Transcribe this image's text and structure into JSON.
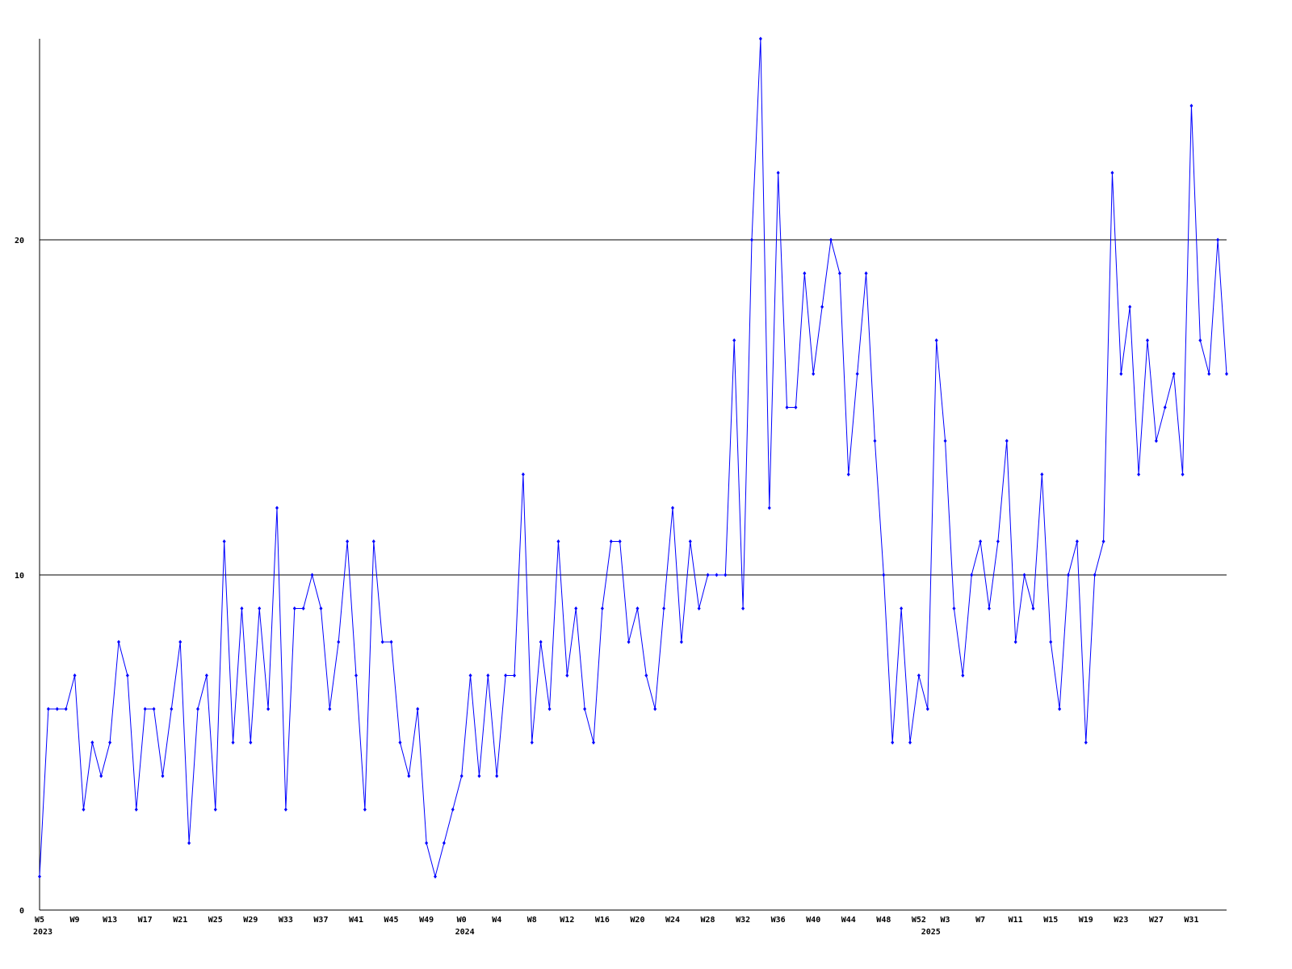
{
  "chart_data": {
    "type": "line",
    "categories": [
      "W5",
      null,
      null,
      null,
      "W9",
      null,
      null,
      null,
      "W13",
      null,
      null,
      null,
      "W17",
      null,
      null,
      null,
      "W21",
      null,
      null,
      null,
      "W25",
      null,
      null,
      null,
      "W29",
      null,
      null,
      null,
      "W33",
      null,
      null,
      null,
      "W37",
      null,
      null,
      null,
      "W41",
      null,
      null,
      null,
      "W45",
      null,
      null,
      null,
      "W49",
      null,
      null,
      null,
      "W0",
      null,
      null,
      null,
      "W4",
      null,
      null,
      null,
      "W8",
      null,
      null,
      null,
      "W12",
      null,
      null,
      null,
      "W16",
      null,
      null,
      null,
      "W20",
      null,
      null,
      null,
      "W24",
      null,
      null,
      null,
      "W28",
      null,
      null,
      null,
      "W32",
      null,
      null,
      null,
      "W36",
      null,
      null,
      null,
      "W40",
      null,
      null,
      null,
      "W44",
      null,
      null,
      null,
      "W48",
      null,
      null,
      null,
      "W52",
      null,
      null,
      "W3",
      null,
      null,
      null,
      "W7",
      null,
      null,
      null,
      "W11",
      null,
      null,
      null,
      "W15",
      null,
      null,
      null,
      "W19",
      null,
      null,
      null,
      "W23",
      null,
      null,
      null,
      "W27",
      null,
      null,
      null,
      "W31",
      null,
      null,
      null,
      null
    ],
    "x_groups": [
      {
        "label": "2023",
        "index": 0
      },
      {
        "label": "2024",
        "index": 48
      },
      {
        "label": "2025",
        "index": 101
      }
    ],
    "series": [
      {
        "color": "#0000ff",
        "values": [
          1,
          6,
          6,
          6,
          7,
          3,
          5,
          4,
          5,
          8,
          7,
          3,
          6,
          6,
          4,
          6,
          8,
          2,
          6,
          7,
          3,
          11,
          5,
          9,
          5,
          9,
          6,
          12,
          3,
          9,
          9,
          10,
          9,
          6,
          8,
          11,
          7,
          3,
          11,
          8,
          8,
          5,
          4,
          6,
          2,
          1,
          2,
          3,
          4,
          7,
          4,
          7,
          4,
          7,
          7,
          13,
          5,
          8,
          6,
          11,
          7,
          9,
          6,
          5,
          9,
          11,
          11,
          8,
          9,
          7,
          6,
          9,
          12,
          8,
          11,
          9,
          10,
          10,
          10,
          17,
          9,
          20,
          26,
          12,
          22,
          15,
          15,
          19,
          16,
          18,
          20,
          19,
          13,
          16,
          19,
          14,
          10,
          5,
          9,
          5,
          7,
          6,
          17,
          14,
          9,
          7,
          10,
          11,
          9,
          11,
          14,
          8,
          10,
          9,
          13,
          8,
          6,
          10,
          11,
          5,
          10,
          11,
          22,
          16,
          18,
          13,
          17,
          14,
          15,
          16,
          13,
          24,
          17,
          16,
          20,
          16
        ]
      }
    ],
    "ylim": [
      0,
      26
    ],
    "yticks": [
      0,
      10,
      20
    ],
    "grid": true
  }
}
